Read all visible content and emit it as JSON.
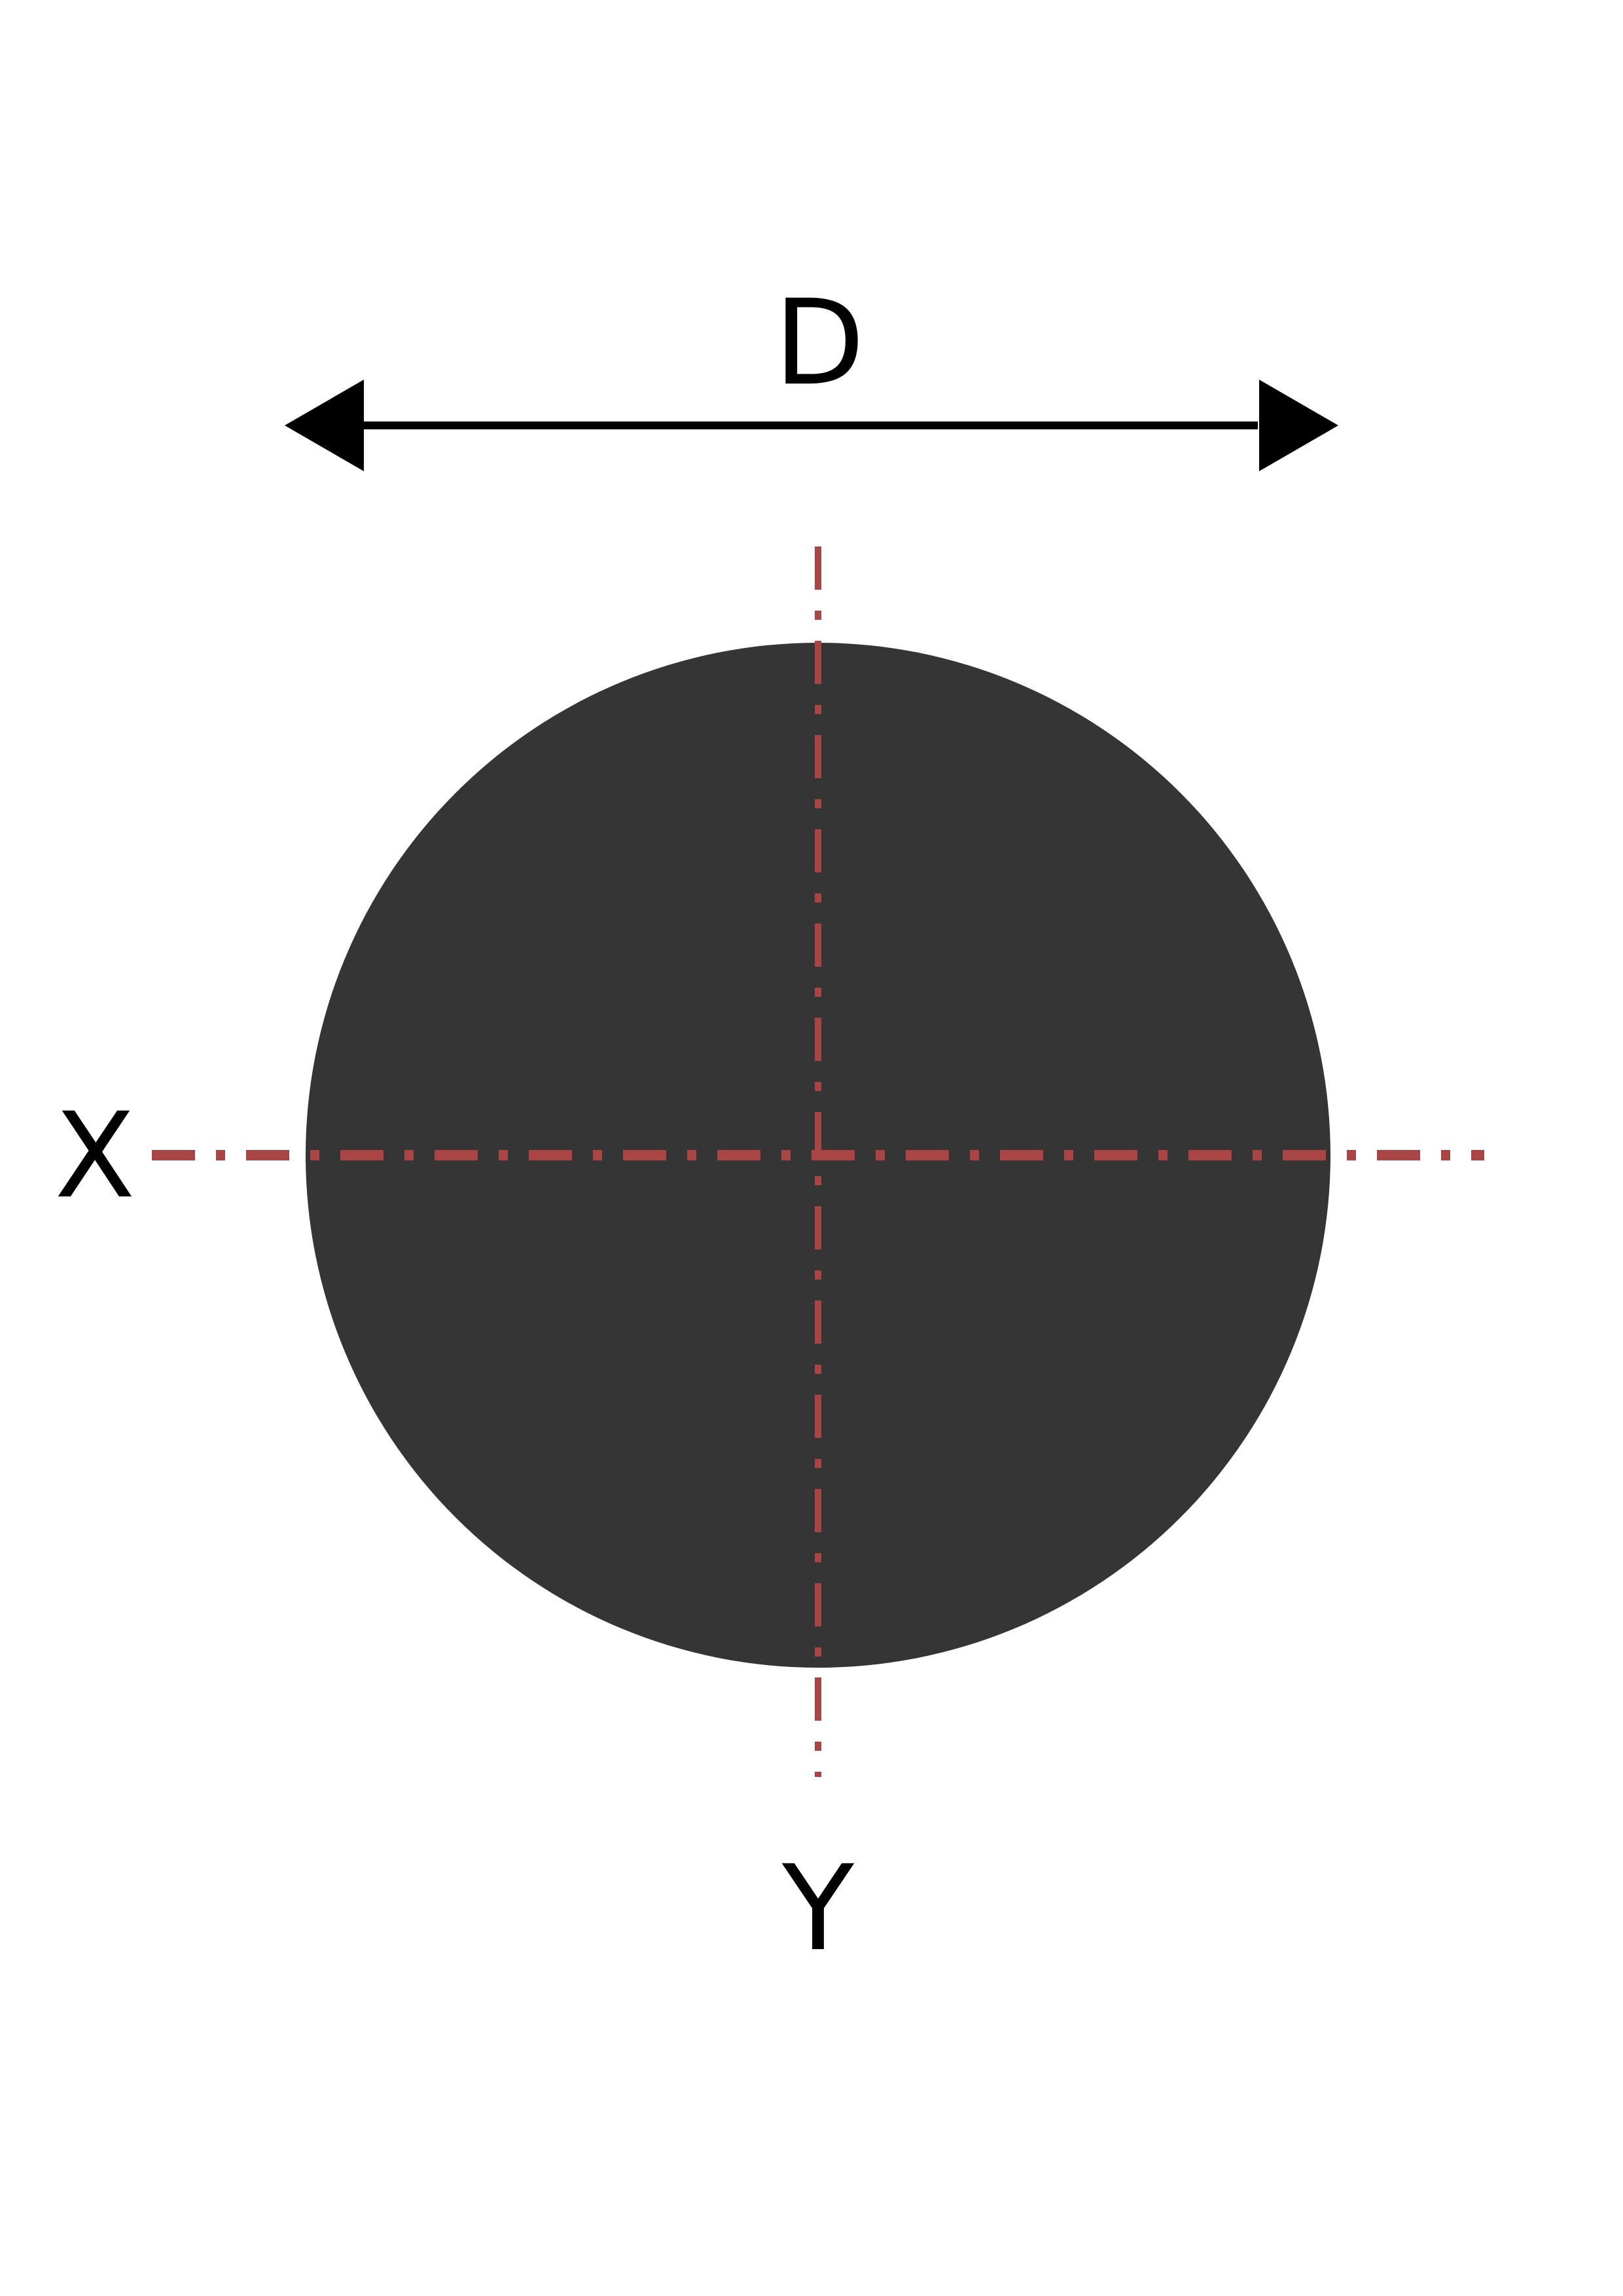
{
  "labels": {
    "dimension": "D",
    "x_axis": "X",
    "y_axis": "Y"
  },
  "colors": {
    "background": "#ffffff",
    "bar_fill": "#353535",
    "axis_line": "#aa4545",
    "dimension_line": "#000000"
  },
  "icons": {
    "left_arrow": "arrowhead-left-icon",
    "right_arrow": "arrowhead-right-icon"
  }
}
